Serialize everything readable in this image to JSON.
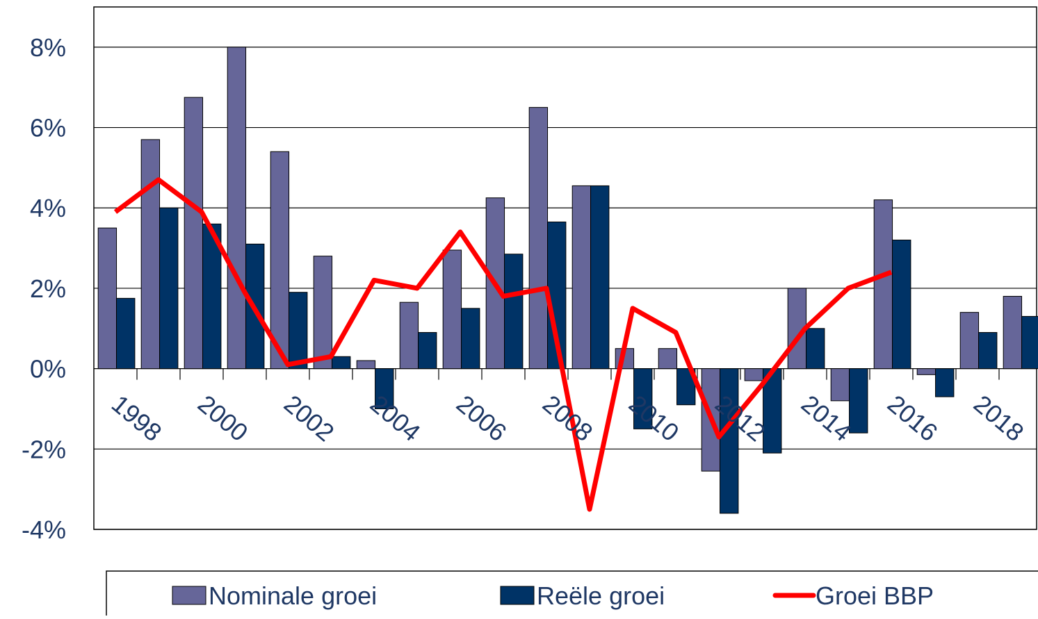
{
  "chart_data": {
    "type": "bar_line",
    "categories": [
      "1998",
      null,
      "2000",
      null,
      "2002",
      null,
      "2004",
      null,
      "2006",
      null,
      "2008",
      null,
      "2010",
      null,
      "2012",
      null,
      "2014",
      null,
      "2016",
      null,
      "2018",
      null
    ],
    "series": [
      {
        "name": "Nominale groei",
        "color": "#666699",
        "kind": "bar",
        "values": [
          3.5,
          5.7,
          6.75,
          8.0,
          5.4,
          2.8,
          0.2,
          1.65,
          2.95,
          4.25,
          6.5,
          4.55,
          0.5,
          0.5,
          -2.55,
          -0.3,
          2.0,
          -0.8,
          4.2,
          -0.15,
          1.4,
          1.8
        ]
      },
      {
        "name": "Reële groei",
        "color": "#003366",
        "kind": "bar",
        "values": [
          1.75,
          4.0,
          3.6,
          3.1,
          1.9,
          0.3,
          -1.0,
          0.9,
          1.5,
          2.85,
          3.65,
          4.55,
          -1.5,
          -0.9,
          -3.6,
          -2.1,
          1.0,
          -1.6,
          3.2,
          -0.7,
          0.9,
          1.3
        ]
      },
      {
        "name": "Groei BBP",
        "color": "#ff0000",
        "kind": "line",
        "values": [
          3.9,
          4.7,
          3.9,
          1.9,
          0.1,
          0.3,
          2.2,
          2.0,
          3.4,
          1.8,
          2.0,
          -3.5,
          1.5,
          0.9,
          -1.7,
          -0.4,
          1.0,
          2.0,
          2.4,
          null,
          null,
          null
        ]
      }
    ],
    "ylim": [
      -4,
      9
    ],
    "yticks": [
      {
        "value": -4,
        "label": "-4%"
      },
      {
        "value": -2,
        "label": "-2%"
      },
      {
        "value": 0,
        "label": "0%"
      },
      {
        "value": 2,
        "label": "2%"
      },
      {
        "value": 4,
        "label": "4%"
      },
      {
        "value": 6,
        "label": "6%"
      },
      {
        "value": 8,
        "label": "8%"
      }
    ],
    "grid": true
  }
}
